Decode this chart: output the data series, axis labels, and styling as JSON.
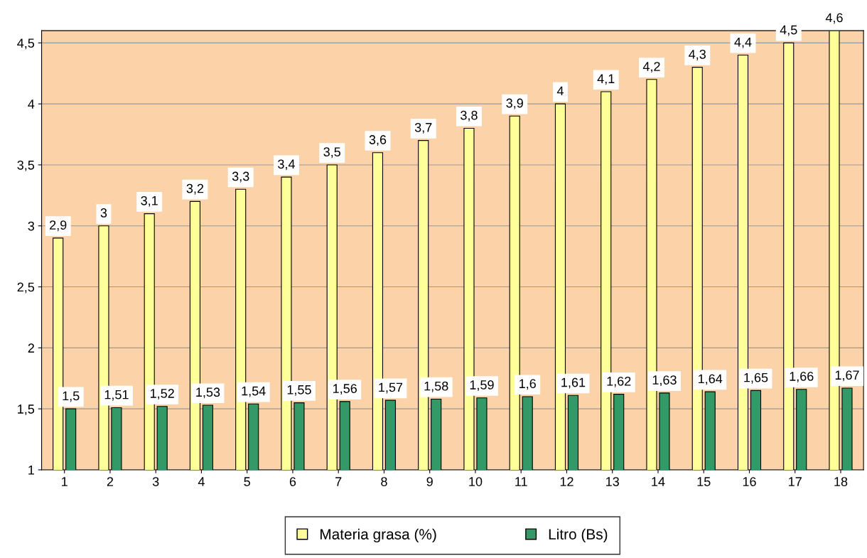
{
  "chart_data": {
    "type": "bar",
    "categories": [
      "1",
      "2",
      "3",
      "4",
      "5",
      "6",
      "7",
      "8",
      "9",
      "10",
      "11",
      "12",
      "13",
      "14",
      "15",
      "16",
      "17",
      "18"
    ],
    "series": [
      {
        "name": "Materia grasa (%)",
        "color": "#ffff99",
        "values": [
          2.9,
          3,
          3.1,
          3.2,
          3.3,
          3.4,
          3.5,
          3.6,
          3.7,
          3.8,
          3.9,
          4,
          4.1,
          4.2,
          4.3,
          4.4,
          4.5,
          4.6
        ],
        "value_labels": [
          "2,9",
          "3",
          "3,1",
          "3,2",
          "3,3",
          "3,4",
          "3,5",
          "3,6",
          "3,7",
          "3,8",
          "3,9",
          "4",
          "4,1",
          "4,2",
          "4,3",
          "4,4",
          "4,5",
          "4,6"
        ]
      },
      {
        "name": "Litro (Bs)",
        "color": "#339966",
        "values": [
          1.5,
          1.51,
          1.52,
          1.53,
          1.54,
          1.55,
          1.56,
          1.57,
          1.58,
          1.59,
          1.6,
          1.61,
          1.62,
          1.63,
          1.64,
          1.65,
          1.66,
          1.67
        ],
        "value_labels": [
          "1,5",
          "1,51",
          "1,52",
          "1,53",
          "1,54",
          "1,55",
          "1,56",
          "1,57",
          "1,58",
          "1,59",
          "1,6",
          "1,61",
          "1,62",
          "1,63",
          "1,64",
          "1,65",
          "1,66",
          "1,67"
        ]
      }
    ],
    "ylim": [
      1,
      4.6
    ],
    "yticks": [
      1,
      {
        "value": 1.5,
        "label": "1,5"
      },
      2,
      {
        "value": 2.5,
        "label": "2,5"
      },
      3,
      {
        "value": 3.5,
        "label": "3,5"
      },
      4,
      {
        "value": 4.5,
        "label": "4,5"
      }
    ],
    "grid": "y",
    "legend": "bottom"
  }
}
